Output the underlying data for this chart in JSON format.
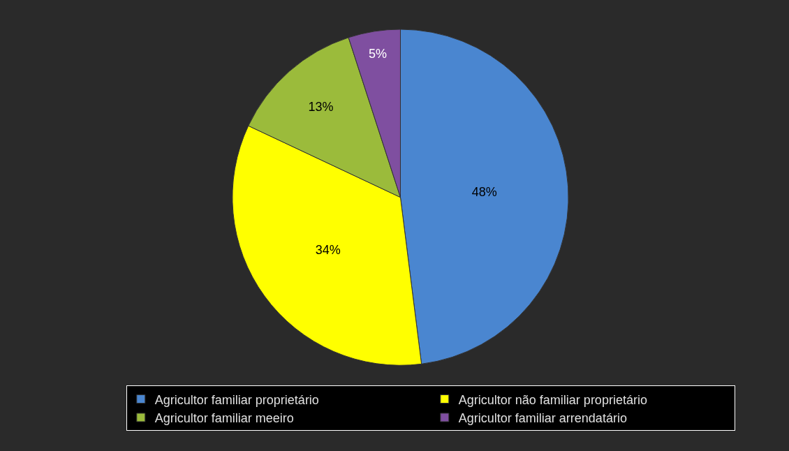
{
  "chart_data": {
    "type": "pie",
    "categories": [
      "Agricultor familiar proprietário",
      "Agricultor não familiar proprietário",
      "Agricultor familiar meeiro",
      "Agricultor familiar arrendatário"
    ],
    "values": [
      48,
      34,
      13,
      5
    ],
    "colors": [
      "#4a86d0",
      "#ffff00",
      "#9bbb3b",
      "#7f4fa0"
    ],
    "value_labels": [
      "48%",
      "34%",
      "13%",
      "5%"
    ],
    "legend": "bottom"
  }
}
